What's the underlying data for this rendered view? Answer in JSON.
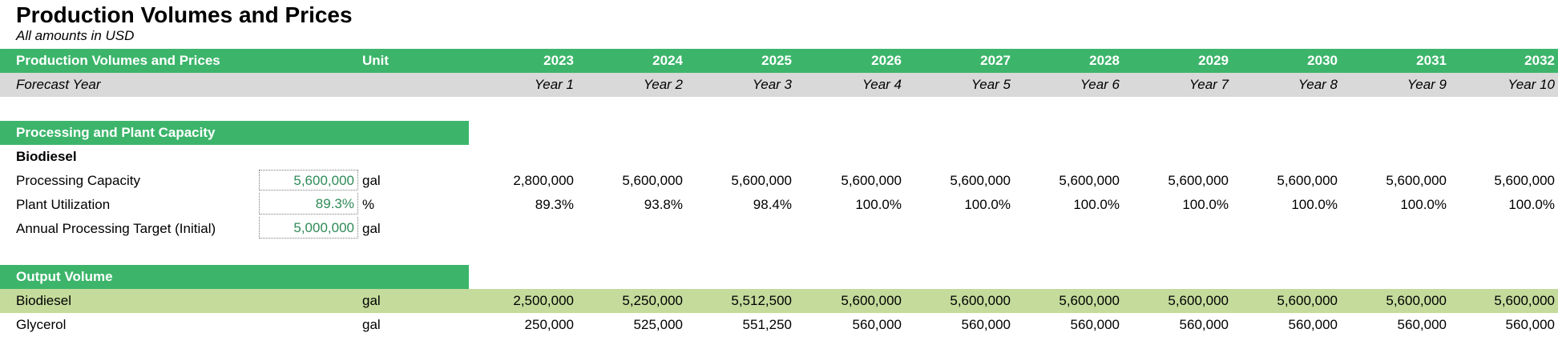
{
  "sheet": {
    "title": "Production Volumes and Prices",
    "subtitle": "All amounts in  USD"
  },
  "header": {
    "label": "Production Volumes and Prices",
    "unit": "Unit",
    "years": [
      "2023",
      "2024",
      "2025",
      "2026",
      "2027",
      "2028",
      "2029",
      "2030",
      "2031",
      "2032"
    ]
  },
  "forecast": {
    "label": "Forecast Year",
    "values": [
      "Year 1",
      "Year 2",
      "Year 3",
      "Year 4",
      "Year 5",
      "Year 6",
      "Year 7",
      "Year 8",
      "Year 9",
      "Year 10"
    ]
  },
  "processing": {
    "section_label": "Processing and Plant Capacity",
    "group_label": "Biodiesel",
    "rows": [
      {
        "label": "Processing Capacity",
        "input": "5,600,000",
        "unit": "gal",
        "values": [
          "2,800,000",
          "5,600,000",
          "5,600,000",
          "5,600,000",
          "5,600,000",
          "5,600,000",
          "5,600,000",
          "5,600,000",
          "5,600,000",
          "5,600,000"
        ]
      },
      {
        "label": "Plant Utilization",
        "input": "89.3%",
        "unit": "%",
        "values": [
          "89.3%",
          "93.8%",
          "98.4%",
          "100.0%",
          "100.0%",
          "100.0%",
          "100.0%",
          "100.0%",
          "100.0%",
          "100.0%"
        ]
      },
      {
        "label": "Annual Processing Target (Initial)",
        "input": "5,000,000",
        "unit": "gal",
        "values": []
      }
    ]
  },
  "output": {
    "section_label": "Output Volume",
    "rows": [
      {
        "label": "Biodiesel",
        "unit": "gal",
        "values": [
          "2,500,000",
          "5,250,000",
          "5,512,500",
          "5,600,000",
          "5,600,000",
          "5,600,000",
          "5,600,000",
          "5,600,000",
          "5,600,000",
          "5,600,000"
        ]
      },
      {
        "label": "Glycerol",
        "unit": "gal",
        "values": [
          "250,000",
          "525,000",
          "551,250",
          "560,000",
          "560,000",
          "560,000",
          "560,000",
          "560,000",
          "560,000",
          "560,000"
        ]
      }
    ]
  },
  "colors": {
    "header_green": "#3cb56b",
    "highlight_green": "#c4db9c",
    "forecast_gray": "#d9d9d9",
    "input_text": "#2e8b57"
  }
}
